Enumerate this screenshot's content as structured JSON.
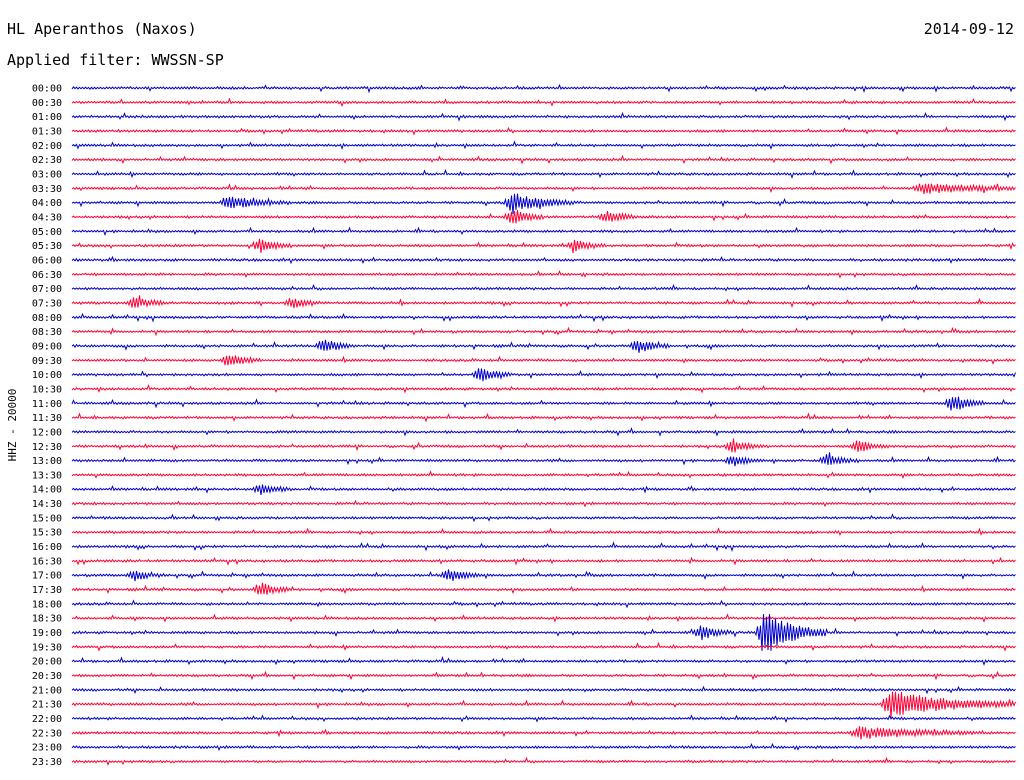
{
  "header": {
    "station": "HL Aperanthos (Naxos)",
    "date": "2014-09-12",
    "filter": "Applied filter: WWSSN-SP"
  },
  "chart_data": {
    "type": "helicorder",
    "channel_label": "HHZ - 20000",
    "colors": {
      "odd": "#0000cc",
      "even": "#ff0033"
    },
    "rows": [
      "00:00",
      "00:30",
      "01:00",
      "01:30",
      "02:00",
      "02:30",
      "03:00",
      "03:30",
      "04:00",
      "04:30",
      "05:00",
      "05:30",
      "06:00",
      "06:30",
      "07:00",
      "07:30",
      "08:00",
      "08:30",
      "09:00",
      "09:30",
      "10:00",
      "10:30",
      "11:00",
      "11:30",
      "12:00",
      "12:30",
      "13:00",
      "13:30",
      "14:00",
      "14:30",
      "15:00",
      "15:30",
      "16:00",
      "16:30",
      "17:00",
      "17:30",
      "18:00",
      "18:30",
      "19:00",
      "19:30",
      "20:00",
      "20:30",
      "21:00",
      "21:30",
      "22:00",
      "22:30",
      "23:00",
      "23:30"
    ],
    "events": [
      {
        "row": 7,
        "minute": 27,
        "amp": 5,
        "dur": 4
      },
      {
        "row": 8,
        "minute": 5,
        "amp": 6,
        "dur": 2
      },
      {
        "row": 8,
        "minute": 14,
        "amp": 10,
        "dur": 2
      },
      {
        "row": 9,
        "minute": 14,
        "amp": 8,
        "dur": 1
      },
      {
        "row": 9,
        "minute": 17,
        "amp": 6,
        "dur": 1
      },
      {
        "row": 11,
        "minute": 6,
        "amp": 7,
        "dur": 1
      },
      {
        "row": 11,
        "minute": 16,
        "amp": 6,
        "dur": 1
      },
      {
        "row": 15,
        "minute": 2,
        "amp": 6,
        "dur": 1
      },
      {
        "row": 15,
        "minute": 7,
        "amp": 5,
        "dur": 1
      },
      {
        "row": 18,
        "minute": 8,
        "amp": 7,
        "dur": 1
      },
      {
        "row": 18,
        "minute": 18,
        "amp": 7,
        "dur": 1
      },
      {
        "row": 19,
        "minute": 5,
        "amp": 7,
        "dur": 1
      },
      {
        "row": 20,
        "minute": 13,
        "amp": 7,
        "dur": 1
      },
      {
        "row": 22,
        "minute": 28,
        "amp": 9,
        "dur": 1
      },
      {
        "row": 25,
        "minute": 21,
        "amp": 7,
        "dur": 1
      },
      {
        "row": 25,
        "minute": 25,
        "amp": 6,
        "dur": 1
      },
      {
        "row": 26,
        "minute": 21,
        "amp": 5,
        "dur": 1
      },
      {
        "row": 26,
        "minute": 24,
        "amp": 6,
        "dur": 1
      },
      {
        "row": 28,
        "minute": 6,
        "amp": 5,
        "dur": 1
      },
      {
        "row": 34,
        "minute": 2,
        "amp": 5,
        "dur": 1
      },
      {
        "row": 34,
        "minute": 12,
        "amp": 7,
        "dur": 1
      },
      {
        "row": 35,
        "minute": 6,
        "amp": 7,
        "dur": 1
      },
      {
        "row": 38,
        "minute": 20,
        "amp": 7,
        "dur": 1
      },
      {
        "row": 38,
        "minute": 22,
        "amp": 22,
        "dur": 2
      },
      {
        "row": 43,
        "minute": 26,
        "amp": 14,
        "dur": 4
      },
      {
        "row": 45,
        "minute": 25,
        "amp": 6,
        "dur": 4
      }
    ]
  }
}
